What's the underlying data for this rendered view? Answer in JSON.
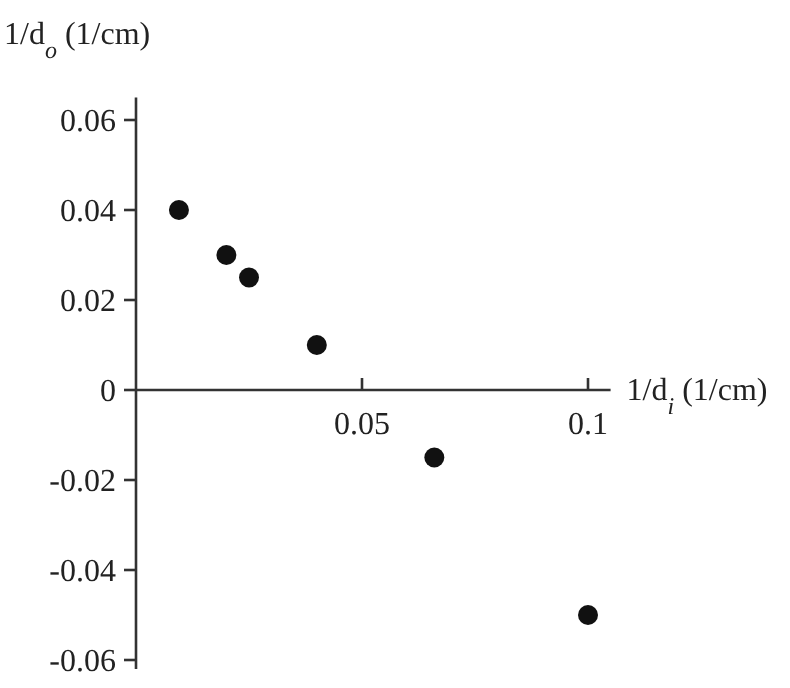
{
  "chart_data": {
    "type": "scatter",
    "xlabel": "1/d$_{i}$ (1/cm)",
    "ylabel": "1/d$_{o}$ (1/cm)",
    "x": [
      0.0095,
      0.02,
      0.025,
      0.04,
      0.066,
      0.1
    ],
    "values": [
      0.04,
      0.03,
      0.025,
      0.01,
      -0.015,
      -0.05
    ],
    "color": "#111111",
    "marker": "circle",
    "xlim": [
      0,
      0.105
    ],
    "ylim": [
      -0.062,
      0.065
    ],
    "xticks": [
      0.05,
      0.1
    ],
    "yticks": [
      -0.06,
      -0.04,
      -0.02,
      0,
      0.02,
      0.04,
      0.06
    ],
    "grid": false
  }
}
